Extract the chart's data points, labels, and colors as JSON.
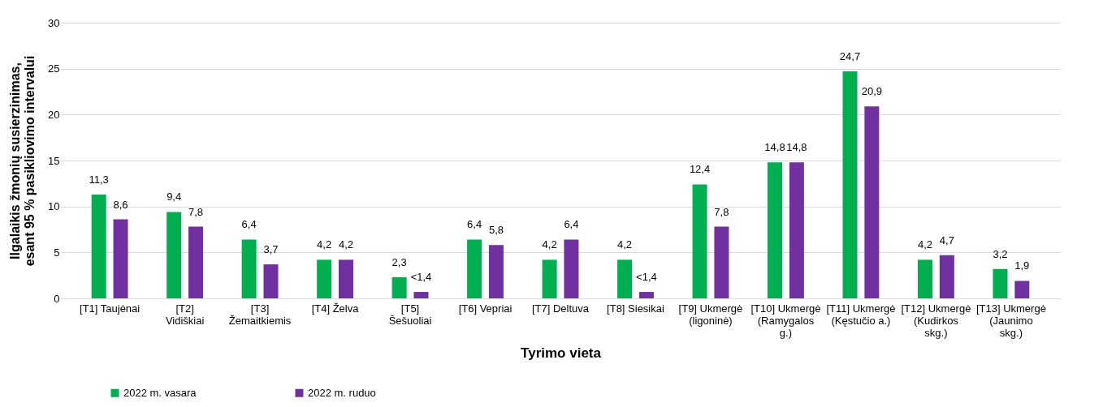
{
  "chart_data": {
    "type": "bar",
    "xlabel": "Tyrimo vieta",
    "ylabel": "Ilgalaikis žmonių susierzinimas, esant 95 % pasikliovimo intervalui",
    "categories": [
      "[T1] Taujėnai",
      "[T2] Vidiškiai",
      "[T3] Žemaitkiemis",
      "[T4] Želva",
      "[T5] Šešuoliai",
      "[T6] Vepriai",
      "[T7] Deltuva",
      "[T8] Siesikai",
      "[T9] Ukmergė (ligoninė)",
      "[T10] Ukmergė (Ramygalos g.)",
      "[T11] Ukmergė (Kęstučio a.)",
      "[T12] Ukmergė (Kudirkos skg.)",
      "[T13] Ukmergė (Jaunimo skg.)"
    ],
    "series": [
      {
        "name": "2022 m. vasara",
        "color": "#00b050",
        "values": [
          11.3,
          9.4,
          6.4,
          4.2,
          2.3,
          6.4,
          4.2,
          4.2,
          12.4,
          14.8,
          24.7,
          4.2,
          3.2
        ],
        "value_labels": [
          "11,3",
          "9,4",
          "6,4",
          "4,2",
          "2,3",
          "6,4",
          "4,2",
          "4,2",
          "12,4",
          "14,8",
          "24,7",
          "4,2",
          "3,2"
        ]
      },
      {
        "name": "2022 m. ruduo",
        "color": "#7030a0",
        "values": [
          8.6,
          7.8,
          3.7,
          4.2,
          0.7,
          5.8,
          6.4,
          0.7,
          7.8,
          14.8,
          20.9,
          4.7,
          1.9
        ],
        "value_labels": [
          "8,6",
          "7,8",
          "3,7",
          "4,2",
          "<1,4",
          "5,8",
          "6,4",
          "<1,4",
          "7,8",
          "14,8",
          "20,9",
          "4,7",
          "1,9"
        ]
      }
    ],
    "ylim": [
      0,
      30
    ],
    "yticks": [
      0,
      5,
      10,
      15,
      20,
      25,
      30
    ],
    "grid": "y",
    "legend": "bottom left"
  }
}
